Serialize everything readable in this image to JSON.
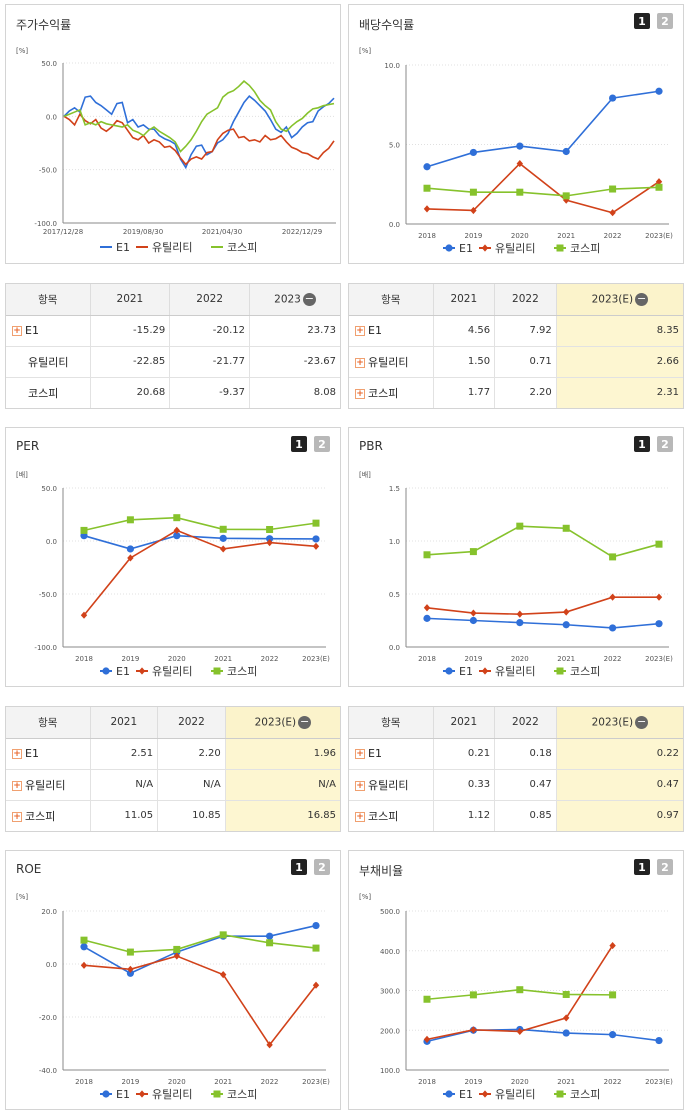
{
  "colors": {
    "e1": "#2f6fd8",
    "util": "#d1421a",
    "kospi": "#86c22c"
  },
  "buttons": {
    "one": "1",
    "two": "2"
  },
  "legend": {
    "e1": "E1",
    "util": "유틸리티",
    "kospi": "코스피"
  },
  "panels": {
    "stock": {
      "title": "주가수익률",
      "unit": "[%]",
      "chart_data": {
        "type": "line",
        "title": "주가수익률",
        "xlabel": "",
        "ylabel": "[%]",
        "ylim": [
          -100,
          50
        ],
        "yticks": [
          "50.0",
          "0.0",
          "-50.0",
          "-100.0"
        ],
        "xticks": [
          "2017/12/28",
          "2019/08/30",
          "2021/04/30",
          "2022/12/29"
        ],
        "series": [
          {
            "name": "E1",
            "values": [
              0,
              5,
              8,
              4,
              18,
              19,
              13,
              10,
              6,
              2,
              12,
              13,
              -6,
              -3,
              -10,
              -8,
              -12,
              -12,
              -18,
              -21,
              -23,
              -26,
              -40,
              -48,
              -36,
              -28,
              -27,
              -36,
              -33,
              -25,
              -22,
              -16,
              -5,
              4,
              13,
              19,
              15,
              10,
              5,
              -3,
              -12,
              -15,
              -10,
              -20,
              -16,
              -10,
              -6,
              -5,
              5,
              9,
              12,
              17
            ]
          },
          {
            "name": "유틸리티",
            "values": [
              0,
              -3,
              -8,
              2,
              -4,
              -7,
              -3,
              -11,
              -14,
              -10,
              -4,
              -6,
              -13,
              -20,
              -22,
              -18,
              -25,
              -22,
              -24,
              -29,
              -28,
              -32,
              -39,
              -45,
              -40,
              -38,
              -40,
              -34,
              -33,
              -22,
              -16,
              -13,
              -12,
              -20,
              -19,
              -23,
              -22,
              -24,
              -18,
              -22,
              -21,
              -18,
              -24,
              -29,
              -31,
              -34,
              -35,
              -38,
              -40,
              -34,
              -30,
              -23
            ]
          },
          {
            "name": "코스피",
            "values": [
              0,
              2,
              4,
              6,
              -8,
              -6,
              -8,
              -5,
              -7,
              -8,
              -9,
              -10,
              -8,
              -13,
              -15,
              -18,
              -13,
              -10,
              -14,
              -17,
              -20,
              -24,
              -33,
              -28,
              -22,
              -14,
              -5,
              2,
              5,
              8,
              18,
              22,
              24,
              28,
              33,
              29,
              23,
              15,
              10,
              6,
              -5,
              -12,
              -14,
              -9,
              -5,
              -2,
              3,
              7,
              8,
              10,
              11,
              12
            ]
          }
        ]
      }
    },
    "dividend": {
      "title": "배당수익률",
      "unit": "[%]",
      "chart_data": {
        "type": "line",
        "title": "배당수익률",
        "xlabel": "",
        "ylabel": "[%]",
        "ylim": [
          0,
          10
        ],
        "yticks": [
          "10.0",
          "5.0",
          "0.0"
        ],
        "categories": [
          "2018",
          "2019",
          "2020",
          "2021",
          "2022",
          "2023(E)"
        ],
        "series": [
          {
            "name": "E1",
            "values": [
              3.6,
              4.5,
              4.9,
              4.56,
              7.92,
              8.35
            ]
          },
          {
            "name": "유틸리티",
            "values": [
              0.95,
              0.85,
              3.8,
              1.5,
              0.71,
              2.66
            ]
          },
          {
            "name": "코스피",
            "values": [
              2.25,
              2.0,
              2.0,
              1.77,
              2.2,
              2.31
            ]
          }
        ]
      }
    },
    "per": {
      "title": "PER",
      "unit": "[배]",
      "chart_data": {
        "type": "line",
        "title": "PER",
        "xlabel": "",
        "ylabel": "[배]",
        "ylim": [
          -100,
          50
        ],
        "yticks": [
          "50.0",
          "0.0",
          "-50.0",
          "-100.0"
        ],
        "categories": [
          "2018",
          "2019",
          "2020",
          "2021",
          "2022",
          "2023(E)"
        ],
        "series": [
          {
            "name": "E1",
            "values": [
              5,
              -7.5,
              5,
              2.51,
              2.2,
              1.96
            ]
          },
          {
            "name": "유틸리티",
            "values": [
              -70,
              -16,
              10,
              -7.5,
              -1.5,
              -5
            ]
          },
          {
            "name": "코스피",
            "values": [
              10,
              20,
              22,
              11.05,
              10.85,
              16.85
            ]
          }
        ]
      }
    },
    "pbr": {
      "title": "PBR",
      "unit": "[배]",
      "chart_data": {
        "type": "line",
        "title": "PBR",
        "xlabel": "",
        "ylabel": "[배]",
        "ylim": [
          0,
          1.5
        ],
        "yticks": [
          "1.5",
          "1.0",
          "0.5",
          "0.0"
        ],
        "categories": [
          "2018",
          "2019",
          "2020",
          "2021",
          "2022",
          "2023(E)"
        ],
        "series": [
          {
            "name": "E1",
            "values": [
              0.27,
              0.25,
              0.23,
              0.21,
              0.18,
              0.22
            ]
          },
          {
            "name": "유틸리티",
            "values": [
              0.37,
              0.32,
              0.31,
              0.33,
              0.47,
              0.47
            ]
          },
          {
            "name": "코스피",
            "values": [
              0.87,
              0.9,
              1.14,
              1.12,
              0.85,
              0.97
            ]
          }
        ]
      }
    },
    "roe": {
      "title": "ROE",
      "unit": "[%]",
      "chart_data": {
        "type": "line",
        "title": "ROE",
        "xlabel": "",
        "ylabel": "[%]",
        "ylim": [
          -40,
          20
        ],
        "yticks": [
          "20.0",
          "0.0",
          "-20.0",
          "-40.0"
        ],
        "categories": [
          "2018",
          "2019",
          "2020",
          "2021",
          "2022",
          "2023(E)"
        ],
        "series": [
          {
            "name": "E1",
            "values": [
              6.5,
              -3.5,
              4.5,
              10.5,
              10.5,
              14.5
            ]
          },
          {
            "name": "유틸리티",
            "values": [
              -0.5,
              -2,
              3,
              -4,
              -30.5,
              -8
            ]
          },
          {
            "name": "코스피",
            "values": [
              9,
              4.5,
              5.5,
              11,
              8,
              6
            ]
          }
        ]
      }
    },
    "debt": {
      "title": "부채비율",
      "unit": "[%]",
      "chart_data": {
        "type": "line",
        "title": "부채비율",
        "xlabel": "",
        "ylabel": "[%]",
        "ylim": [
          100,
          500
        ],
        "yticks": [
          "500.0",
          "400.0",
          "300.0",
          "200.0",
          "100.0"
        ],
        "categories": [
          "2018",
          "2019",
          "2020",
          "2021",
          "2022",
          "2023(E)"
        ],
        "series": [
          {
            "name": "E1",
            "values": [
              172,
              200,
              202,
              193,
              189,
              174
            ]
          },
          {
            "name": "유틸리티",
            "values": [
              177,
              201,
              197,
              231,
              413,
              null
            ]
          },
          {
            "name": "코스피",
            "values": [
              278,
              289,
              302,
              290,
              289,
              null
            ]
          }
        ]
      }
    }
  },
  "tables": {
    "stock": {
      "headers": [
        "항목",
        "2021",
        "2022",
        "2023"
      ],
      "rows": [
        {
          "label": "E1",
          "cells": [
            "-15.29",
            "-20.12",
            "23.73"
          ]
        },
        {
          "label": "유틸리티",
          "cells": [
            "-22.85",
            "-21.77",
            "-23.67"
          ]
        },
        {
          "label": "코스피",
          "cells": [
            "20.68",
            "-9.37",
            "8.08"
          ]
        }
      ]
    },
    "dividend": {
      "headers": [
        "항목",
        "2021",
        "2022",
        "2023(E)"
      ],
      "rows": [
        {
          "label": "E1",
          "cells": [
            "4.56",
            "7.92",
            "8.35"
          ]
        },
        {
          "label": "유틸리티",
          "cells": [
            "1.50",
            "0.71",
            "2.66"
          ]
        },
        {
          "label": "코스피",
          "cells": [
            "1.77",
            "2.20",
            "2.31"
          ]
        }
      ]
    },
    "per": {
      "headers": [
        "항목",
        "2021",
        "2022",
        "2023(E)"
      ],
      "rows": [
        {
          "label": "E1",
          "cells": [
            "2.51",
            "2.20",
            "1.96"
          ]
        },
        {
          "label": "유틸리티",
          "cells": [
            "N/A",
            "N/A",
            "N/A"
          ]
        },
        {
          "label": "코스피",
          "cells": [
            "11.05",
            "10.85",
            "16.85"
          ]
        }
      ]
    },
    "pbr": {
      "headers": [
        "항목",
        "2021",
        "2022",
        "2023(E)"
      ],
      "rows": [
        {
          "label": "E1",
          "cells": [
            "0.21",
            "0.18",
            "0.22"
          ]
        },
        {
          "label": "유틸리티",
          "cells": [
            "0.33",
            "0.47",
            "0.47"
          ]
        },
        {
          "label": "코스피",
          "cells": [
            "1.12",
            "0.85",
            "0.97"
          ]
        }
      ]
    }
  }
}
